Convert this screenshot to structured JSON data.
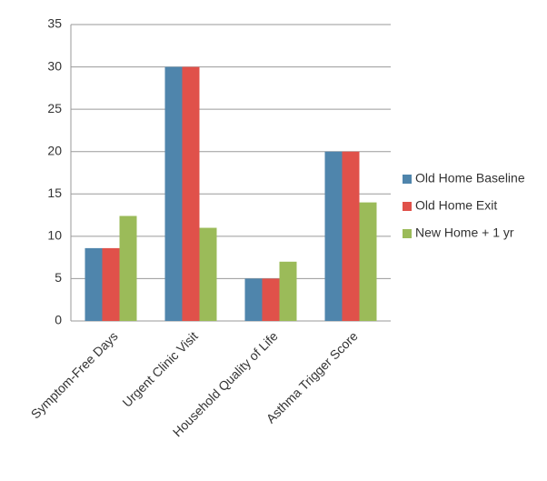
{
  "chart_data": {
    "type": "bar",
    "categories": [
      "Symptom-Free Days",
      "Urgent Clinic Visit",
      "Household Quality of Life",
      "Asthma Trigger Score"
    ],
    "series": [
      {
        "name": "Old Home Baseline",
        "color": "#4f85ac",
        "values": [
          8.6,
          30,
          5,
          20
        ]
      },
      {
        "name": "Old Home Exit",
        "color": "#e0514a",
        "values": [
          8.6,
          30,
          5,
          20
        ]
      },
      {
        "name": "New Home + 1 yr",
        "color": "#9bbb59",
        "values": [
          12.4,
          11,
          7,
          14
        ]
      }
    ],
    "ylim": [
      0,
      35
    ],
    "yticks": [
      0,
      5,
      10,
      15,
      20,
      25,
      30,
      35
    ],
    "grid": true,
    "legend": "right"
  }
}
